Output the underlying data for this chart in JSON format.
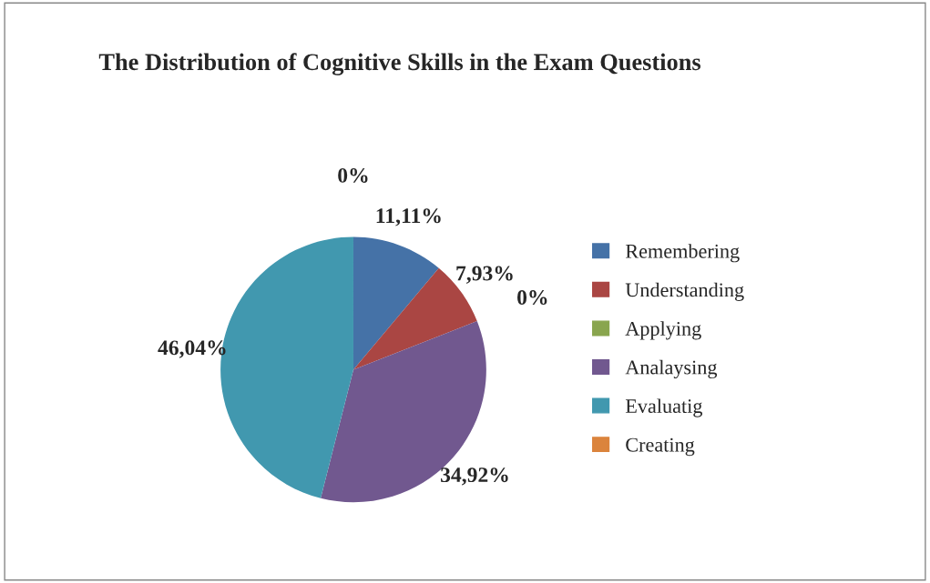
{
  "chart_data": {
    "type": "pie",
    "title": "The Distribution of Cognitive Skills in the Exam Questions",
    "categories": [
      "Remembering",
      "Understanding",
      "Applying",
      "Analaysing",
      "Evaluatig",
      "Creating"
    ],
    "values": [
      11.11,
      7.93,
      0,
      34.92,
      46.04,
      0
    ],
    "value_labels": [
      "11,11%",
      "7,93%",
      "0%",
      "34,92%",
      "46,04%",
      "0%"
    ],
    "colors": [
      "#4572a7",
      "#aa4643",
      "#89a54e",
      "#71588f",
      "#4198af",
      "#db843d"
    ],
    "legend": "right"
  }
}
